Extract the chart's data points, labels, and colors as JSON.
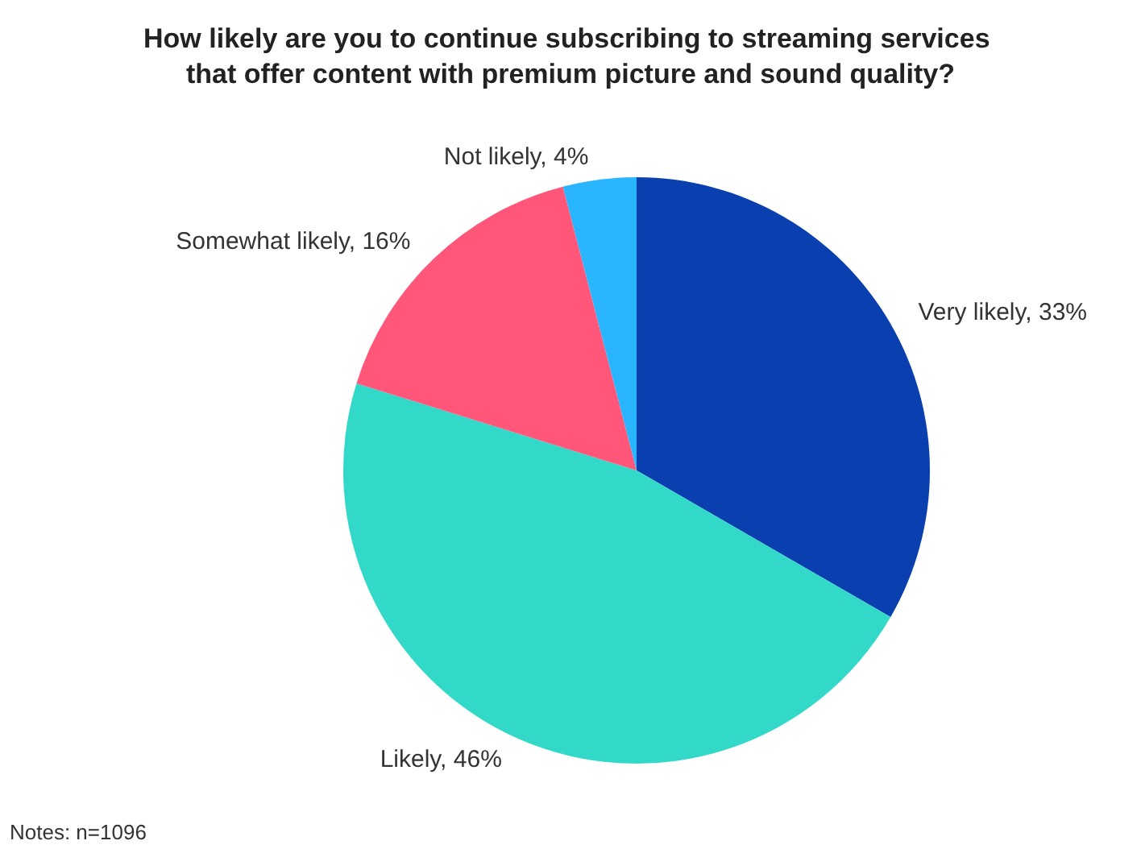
{
  "chart_data": {
    "type": "pie",
    "title": "How likely are you to continue subscribing to streaming services that offer content with premium picture and sound quality?",
    "categories": [
      "Very likely",
      "Likely",
      "Somewhat likely",
      "Not likely"
    ],
    "values": [
      33,
      46,
      16,
      4
    ],
    "value_labels": [
      "33%",
      "46%",
      "16%",
      "4%"
    ],
    "colors": [
      "#0a3fb0",
      "#33d9c8",
      "#ff567a",
      "#29b6ff"
    ],
    "legend": false,
    "annotations": [
      "Notes: n=1096"
    ]
  }
}
